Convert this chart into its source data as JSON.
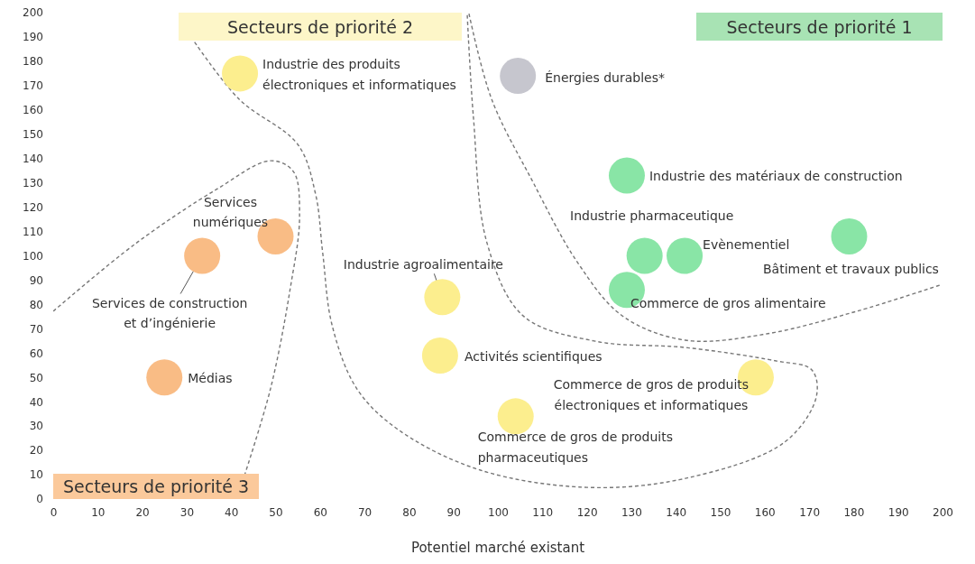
{
  "chart_data": {
    "type": "scatter",
    "marker": "circle",
    "xlabel": "Potentiel marché existant",
    "x": [
      42,
      104.5,
      129,
      133,
      142,
      179,
      129,
      50,
      33.5,
      25,
      87.5,
      87,
      158,
      104
    ],
    "values": [
      175,
      174,
      133,
      100,
      100,
      108,
      86,
      108,
      100,
      50,
      83,
      59,
      50,
      34
    ],
    "colors": [
      "#fcee8e",
      "#c6c6ce",
      "#89e5a6",
      "#89e5a6",
      "#89e5a6",
      "#89e5a6",
      "#89e5a6",
      "#f9bc85",
      "#f9bc85",
      "#f9bc85",
      "#fcee8e",
      "#fcee8e",
      "#fcee8e",
      "#fcee8e"
    ],
    "xlim": [
      0,
      200
    ],
    "ylim": [
      0,
      200
    ],
    "xticks": [
      0,
      10,
      20,
      30,
      40,
      50,
      60,
      70,
      80,
      90,
      100,
      110,
      120,
      130,
      140,
      150,
      160,
      170,
      180,
      190,
      200
    ],
    "yticks": [
      0,
      10,
      20,
      30,
      40,
      50,
      60,
      70,
      80,
      90,
      100,
      110,
      120,
      130,
      140,
      150,
      160,
      170,
      180,
      190,
      200
    ],
    "annotations": [
      {
        "text": "Industrie des produits électroniques et informatiques",
        "x": 42,
        "y": 175
      },
      {
        "text": "Énergies durables*",
        "x": 104.5,
        "y": 174
      },
      {
        "text": "Industrie des matériaux de construction",
        "x": 129,
        "y": 133
      },
      {
        "text": "Industrie pharmaceutique",
        "x": 133,
        "y": 100
      },
      {
        "text": "Evènementiel",
        "x": 142,
        "y": 100
      },
      {
        "text": "Bâtiment et travaux publics",
        "x": 179,
        "y": 108
      },
      {
        "text": "Commerce de gros alimentaire",
        "x": 129,
        "y": 86
      },
      {
        "text": "Services numériques",
        "x": 50,
        "y": 108
      },
      {
        "text": "Services de construction et d’ingénierie",
        "x": 33.5,
        "y": 100
      },
      {
        "text": "Médias",
        "x": 25,
        "y": 50
      },
      {
        "text": "Industrie agroalimentaire",
        "x": 87.5,
        "y": 83
      },
      {
        "text": "Activités scientifiques",
        "x": 87,
        "y": 59
      },
      {
        "text": "Commerce de gros de produits électroniques et informatiques",
        "x": 158,
        "y": 50
      },
      {
        "text": "Commerce de gros de produits pharmaceutiques",
        "x": 104,
        "y": 34
      },
      "Secteurs de priorité 2",
      "Secteurs de priorité 1",
      "Secteurs de priorité 3"
    ]
  }
}
